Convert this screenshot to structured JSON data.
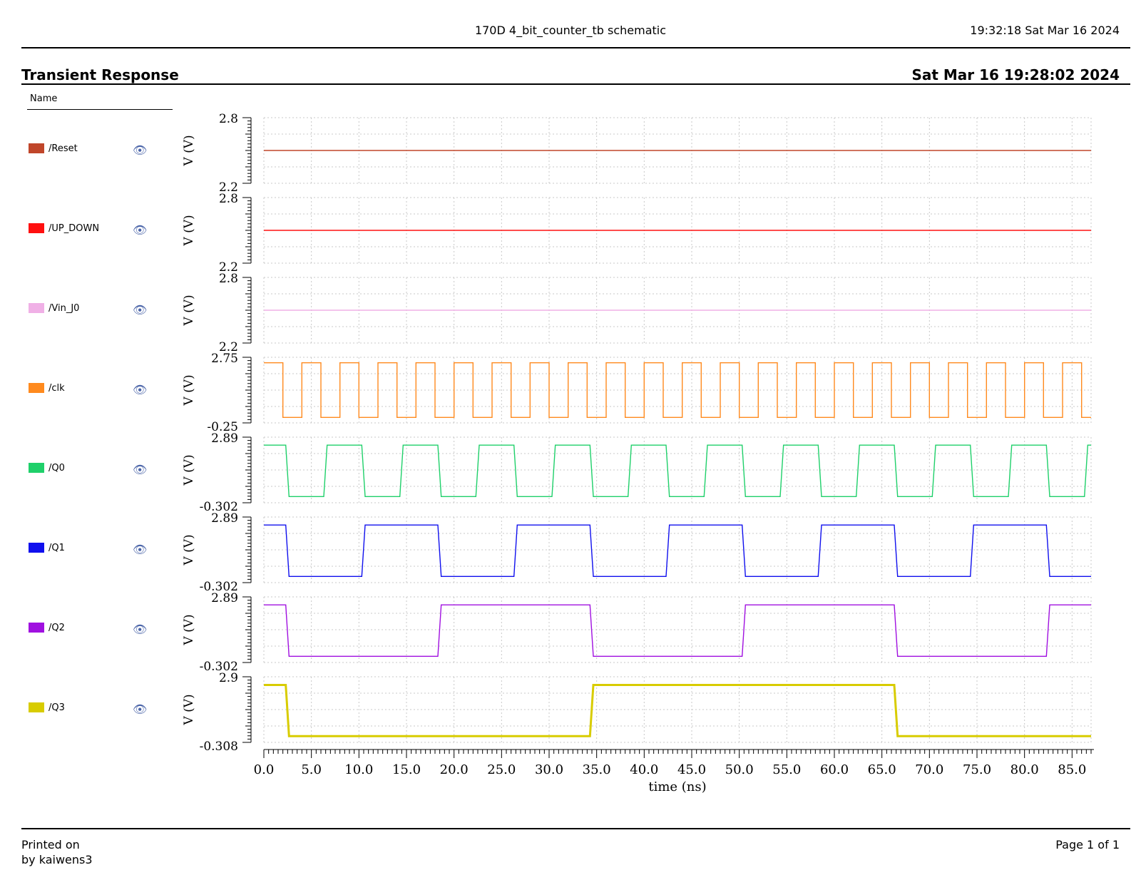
{
  "header": {
    "center_title": "170D 4_bit_counter_tb schematic",
    "timestamp": "19:32:18  Sat Mar 16 2024"
  },
  "section": {
    "title": "Transient Response",
    "date": "Sat Mar 16 19:28:02 2024"
  },
  "legend": {
    "heading": "Name",
    "items": [
      {
        "label": "/Reset",
        "color": "#c0462a",
        "icon": "eye-icon"
      },
      {
        "label": "/UP_DOWN",
        "color": "#ff1010",
        "icon": "eye-icon"
      },
      {
        "label": "/Vin_J0",
        "color": "#f0b0e6",
        "icon": "eye-icon"
      },
      {
        "label": "/clk",
        "color": "#ff8a1e",
        "icon": "eye-icon"
      },
      {
        "label": "/Q0",
        "color": "#1fd06a",
        "icon": "eye-icon"
      },
      {
        "label": "/Q1",
        "color": "#1010ee",
        "icon": "eye-icon"
      },
      {
        "label": "/Q2",
        "color": "#a010e0",
        "icon": "eye-icon"
      },
      {
        "label": "/Q3",
        "color": "#d8cc00",
        "icon": "eye-icon"
      }
    ]
  },
  "chart_data": {
    "type": "line",
    "xlabel": "time (ns)",
    "xlim": [
      0.0,
      87.0
    ],
    "x_ticks": [
      "0.0",
      "5.0",
      "10.0",
      "15.0",
      "20.0",
      "25.0",
      "30.0",
      "35.0",
      "40.0",
      "45.0",
      "50.0",
      "55.0",
      "60.0",
      "65.0",
      "70.0",
      "75.0",
      "80.0",
      "85.0"
    ],
    "grid": true,
    "panels": [
      {
        "name": "/Reset",
        "ylabel": "V (V)",
        "ymin_label": "2.2",
        "ymax_label": "2.8",
        "ylim": [
          2.2,
          2.8
        ],
        "color": "#c0462a",
        "points": [
          [
            0,
            2.5
          ],
          [
            87,
            2.5
          ]
        ]
      },
      {
        "name": "/UP_DOWN",
        "ylabel": "V (V)",
        "ymin_label": "2.2",
        "ymax_label": "2.8",
        "ylim": [
          2.2,
          2.8
        ],
        "color": "#ff1010",
        "points": [
          [
            0,
            2.5
          ],
          [
            87,
            2.5
          ]
        ]
      },
      {
        "name": "/Vin_J0",
        "ylabel": "V (V)",
        "ymin_label": "2.2",
        "ymax_label": "2.8",
        "ylim": [
          2.2,
          2.8
        ],
        "color": "#f0b0e6",
        "points": [
          [
            0,
            2.5
          ],
          [
            87,
            2.5
          ]
        ]
      },
      {
        "name": "/clk",
        "ylabel": "V (V)",
        "ymin_label": "-0.25",
        "ymax_label": "2.75",
        "ylim": [
          -0.25,
          2.75
        ],
        "color": "#ff8a1e",
        "square": {
          "high": 2.5,
          "low": 0.0,
          "period": 4.0,
          "high_first": 2.0,
          "rise_at": 4.0,
          "start_high": true
        }
      },
      {
        "name": "/Q0",
        "ylabel": "V (V)",
        "ymin_label": "-0.302",
        "ymax_label": "2.89",
        "ylim": [
          -0.302,
          2.89
        ],
        "color": "#1fd06a",
        "toggles": [
          2.3,
          6.3,
          10.3,
          14.3,
          18.3,
          22.3,
          26.3,
          30.3,
          34.3,
          38.3,
          42.3,
          46.3,
          50.3,
          54.3,
          58.3,
          62.3,
          66.3,
          70.3,
          74.3,
          78.3,
          82.3,
          86.3
        ],
        "high": 2.5,
        "low": 0.0,
        "start_high": true
      },
      {
        "name": "/Q1",
        "ylabel": "V (V)",
        "ymin_label": "-0.302",
        "ymax_label": "2.89",
        "ylim": [
          -0.302,
          2.89
        ],
        "color": "#1010ee",
        "toggles": [
          2.3,
          10.3,
          18.3,
          26.3,
          34.3,
          42.3,
          50.3,
          58.3,
          66.3,
          74.3,
          82.3
        ],
        "high": 2.5,
        "low": 0.0,
        "start_high": true
      },
      {
        "name": "/Q2",
        "ylabel": "V (V)",
        "ymin_label": "-0.302",
        "ymax_label": "2.89",
        "ylim": [
          -0.302,
          2.89
        ],
        "color": "#a010e0",
        "toggles": [
          2.3,
          18.3,
          34.3,
          50.3,
          66.3,
          82.3
        ],
        "high": 2.5,
        "low": 0.0,
        "start_high": true
      },
      {
        "name": "/Q3",
        "ylabel": "V (V)",
        "ymin_label": "-0.308",
        "ymax_label": "2.9",
        "ylim": [
          -0.308,
          2.9
        ],
        "color": "#d8cc00",
        "toggles": [
          2.3,
          34.3,
          66.3
        ],
        "high": 2.5,
        "low": 0.0,
        "start_high": true,
        "thick": true
      }
    ]
  },
  "footer": {
    "printed_on": "Printed on",
    "by": "by kaiwens3",
    "page": "Page 1 of 1"
  }
}
